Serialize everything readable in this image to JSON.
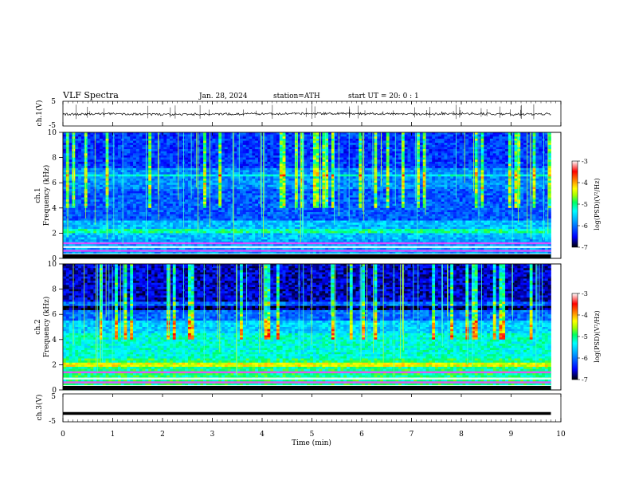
{
  "header": {
    "title": "VLF  Spectra",
    "date": "Jan. 28, 2024",
    "station": "station=ATH",
    "start": "start  UT  =   20: 0  : 1"
  },
  "chart_data": [
    {
      "type": "line",
      "panel": "ch1-waveform",
      "ylabel": "ch.1(V)",
      "ylim": [
        -5,
        5
      ],
      "y_ticks": [
        "5",
        "-5"
      ],
      "x": [
        0,
        1,
        2,
        3,
        4,
        5,
        6,
        7,
        8,
        9,
        9.8
      ],
      "values": [
        -0.3,
        0.0,
        -0.4,
        -0.2,
        -0.1,
        0.1,
        0.0,
        -0.2,
        0.0,
        -0.2,
        -0.3
      ]
    },
    {
      "type": "heatmap",
      "panel": "ch1-spectrogram",
      "ylabel": "ch.1\nFrequency (kHz)",
      "ylim": [
        0,
        10
      ],
      "y_ticks": [
        "0",
        "2",
        "4",
        "6",
        "8",
        "10"
      ],
      "xlim": [
        0,
        9.8
      ]
    },
    {
      "type": "heatmap",
      "panel": "ch2-spectrogram",
      "ylabel": "ch.2\nFrequency (kHz)",
      "ylim": [
        0,
        10
      ],
      "y_ticks": [
        "0",
        "2",
        "4",
        "6",
        "8",
        "10"
      ],
      "xlim": [
        0,
        9.8
      ]
    },
    {
      "type": "line",
      "panel": "ch3-waveform",
      "ylabel": "ch.3(V)",
      "ylim": [
        -5,
        5
      ],
      "y_ticks": [
        "5",
        "-5"
      ],
      "x": [
        0,
        9.8
      ],
      "values": [
        -2.0,
        -2.0
      ]
    }
  ],
  "x_axis": {
    "label": "Time (min)",
    "xlim": [
      0,
      10
    ],
    "ticks": [
      "0",
      "1",
      "2",
      "3",
      "4",
      "5",
      "6",
      "7",
      "8",
      "9",
      "10"
    ]
  },
  "colorbar": {
    "label": "log(PSD)(V²/Hz)",
    "range": [
      -7,
      -3
    ],
    "ticks": [
      "-3",
      "-4",
      "-5",
      "-6",
      "-7"
    ],
    "colors": [
      "#000000",
      "#0000ff",
      "#00a0ff",
      "#00ffff",
      "#00ff60",
      "#a0ff00",
      "#ffff00",
      "#ff8000",
      "#ff0000",
      "#ffffff"
    ]
  }
}
